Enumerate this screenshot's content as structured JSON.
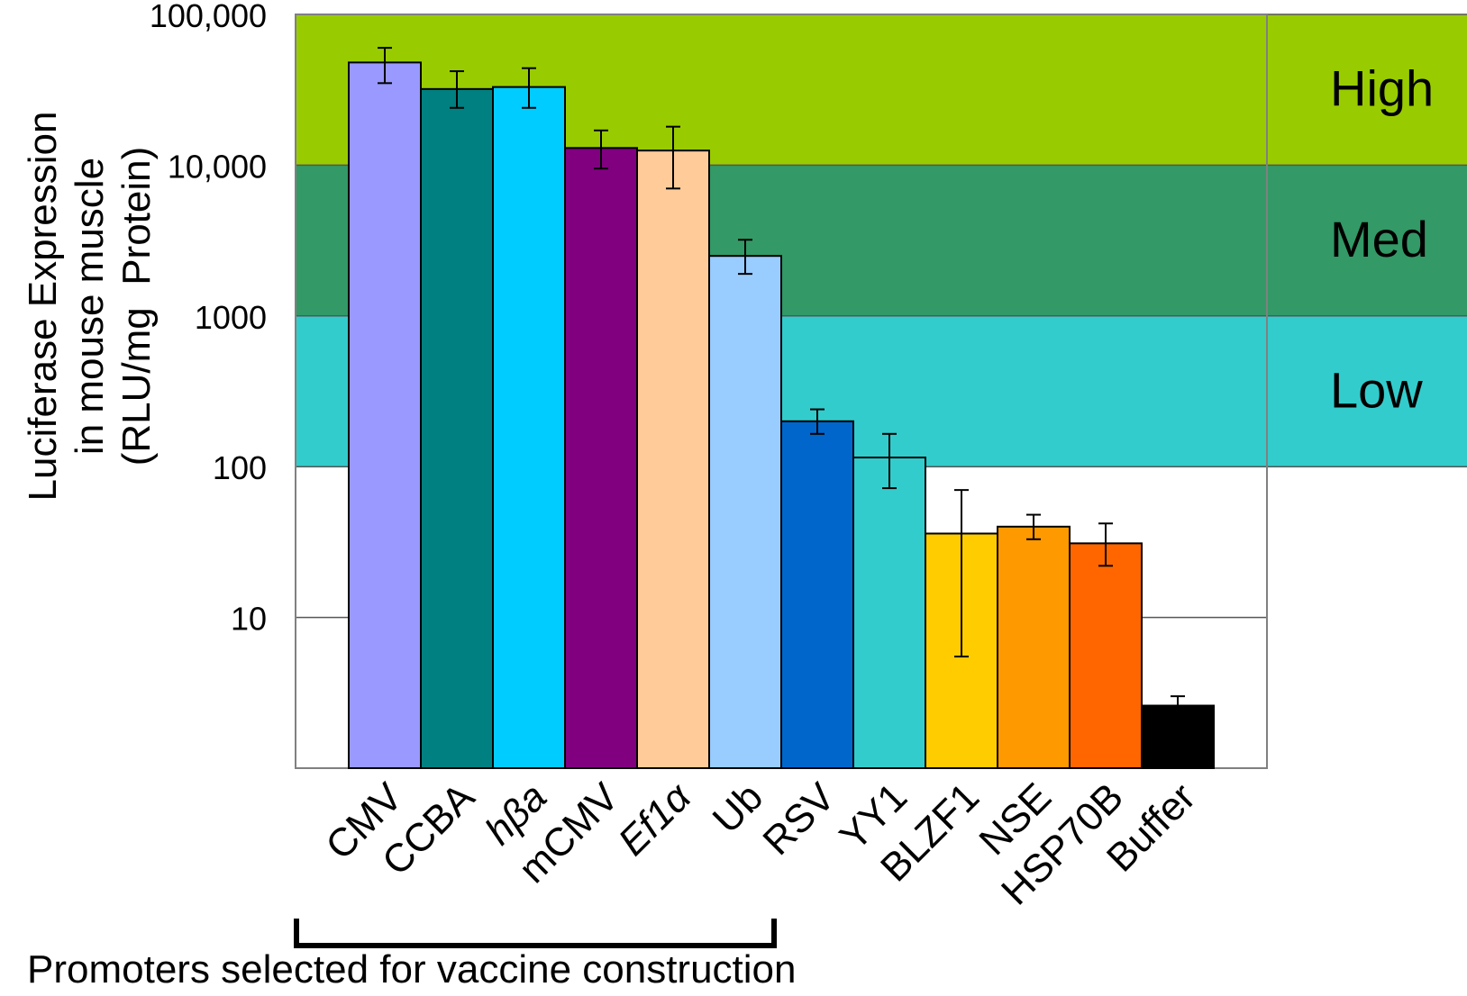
{
  "chart_data": {
    "type": "bar",
    "yscale": "log",
    "ylim": [
      1,
      100000
    ],
    "ytick_labels": [
      "100,000",
      "10,000",
      "1000",
      "100",
      "10"
    ],
    "ylabel_lines": [
      "Luciferase Expression",
      "in mouse muscle",
      "(RLU/mg  Protein)"
    ],
    "categories": [
      "CMV",
      "CCBA",
      "hβa",
      "mCMV",
      "Ef1α",
      "Ub",
      "RSV",
      "YY1",
      "BLZF1",
      "NSE",
      "HSP70B",
      "Buffer"
    ],
    "values": [
      48000,
      32000,
      33000,
      13000,
      12500,
      2500,
      200,
      115,
      36,
      40,
      31,
      2.6
    ],
    "error_low": [
      35000,
      24000,
      24000,
      9500,
      7000,
      1900,
      165,
      72,
      5.5,
      33,
      22,
      2.3
    ],
    "error_high": [
      60000,
      42000,
      44000,
      17000,
      18000,
      3200,
      240,
      165,
      70,
      48,
      42,
      3.0
    ],
    "colors": [
      "#9999ff",
      "#008080",
      "#00ccff",
      "#800080",
      "#ffcc99",
      "#99ccff",
      "#0066cc",
      "#33cccc",
      "#ffcc00",
      "#ff9900",
      "#ff6600",
      "#000000"
    ],
    "bands": [
      {
        "label": "High",
        "from": 10000,
        "to": 100000,
        "color": "#99cc00"
      },
      {
        "label": "Med",
        "from": 1000,
        "to": 10000,
        "color": "#339966"
      },
      {
        "label": "Low",
        "from": 100,
        "to": 1000,
        "color": "#33cccc"
      }
    ],
    "bracket": {
      "from": "CMV",
      "to": "Ub",
      "label": "Promoters selected for vaccine construction"
    }
  }
}
